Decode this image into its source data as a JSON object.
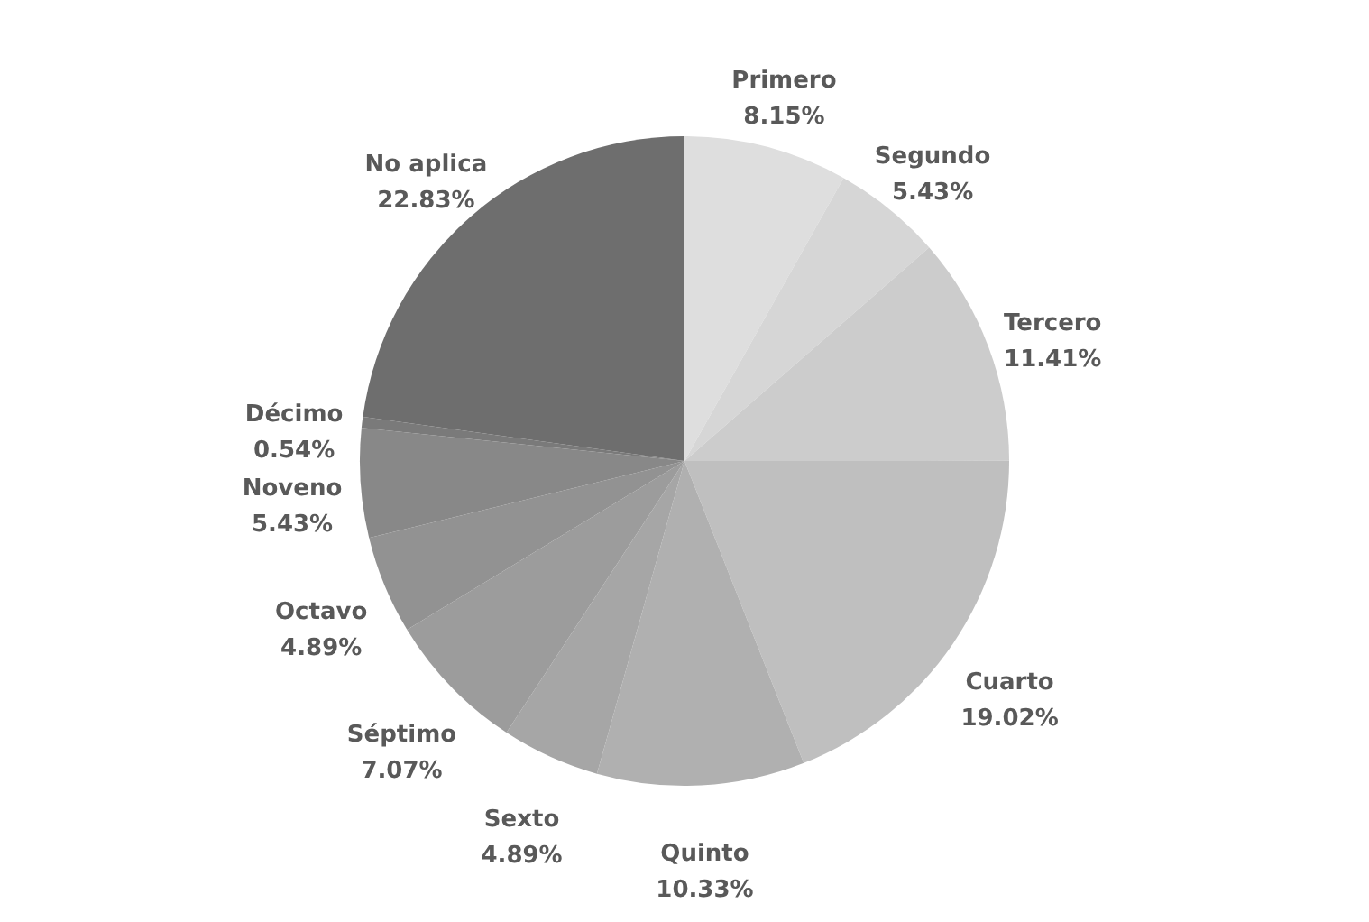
{
  "chart_data": {
    "type": "pie",
    "categories": [
      "Primero",
      "Segundo",
      "Tercero",
      "Cuarto",
      "Quinto",
      "Sexto",
      "Séptimo",
      "Octavo",
      "Noveno",
      "Décimo",
      "No aplica"
    ],
    "values": [
      8.15,
      5.43,
      11.41,
      19.02,
      10.33,
      4.89,
      7.07,
      4.89,
      5.43,
      0.54,
      22.83
    ],
    "value_labels": [
      "8.15%",
      "5.43%",
      "11.41%",
      "19.02%",
      "10.33%",
      "4.89%",
      "7.07%",
      "4.89%",
      "5.43%",
      "0.54%",
      "22.83%"
    ],
    "colors": [
      "#dedede",
      "#d6d6d6",
      "#cccccc",
      "#bfbfbf",
      "#b0b0b0",
      "#a6a6a6",
      "#9c9c9c",
      "#929292",
      "#888888",
      "#7a7a7a",
      "#6e6e6e"
    ]
  }
}
